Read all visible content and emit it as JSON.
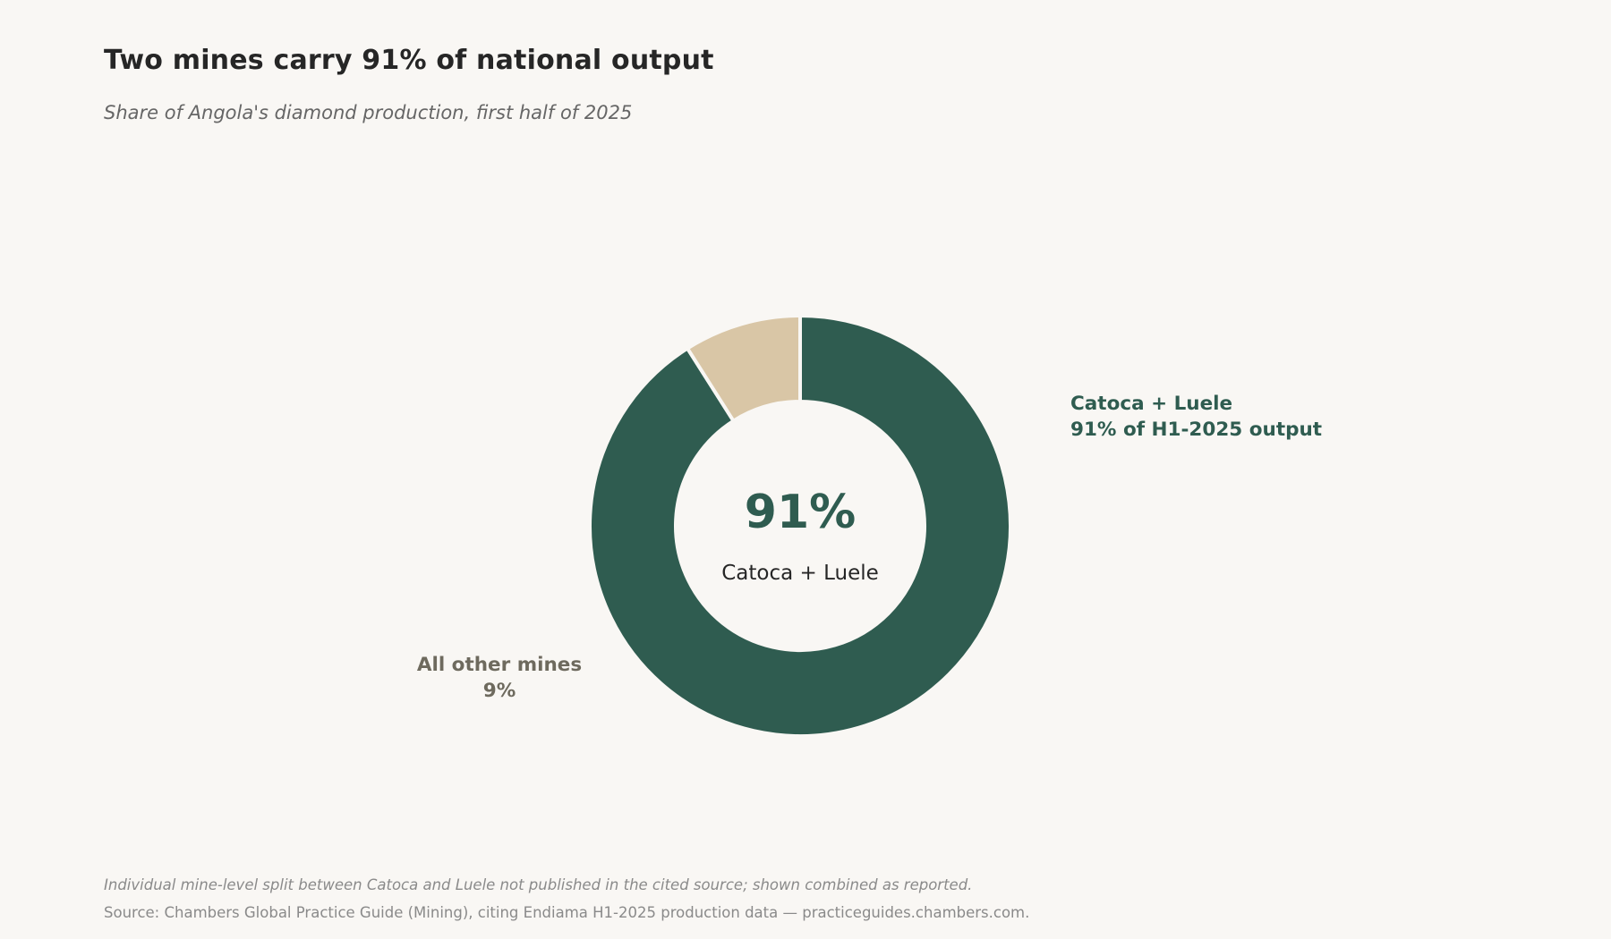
{
  "title": "Two mines carry 91% of national output",
  "subtitle": "Share of Angola's diamond production, first half of 2025",
  "chart_data": {
    "type": "pie",
    "variant": "donut",
    "categories": [
      "Catoca + Luele",
      "All other mines"
    ],
    "values": [
      91,
      9
    ],
    "unit": "%",
    "colors": [
      "#2f5c50",
      "#d9c6a6"
    ],
    "legend": "none",
    "center_label": {
      "value": "91%",
      "text": "Catoca + Luele"
    },
    "annotations": [
      {
        "line1": "Catoca + Luele",
        "line2": "91% of H1-2025 output",
        "color": "#2f5c50"
      },
      {
        "line1": "All other mines",
        "line2": "9%",
        "color": "#6e6a5e"
      }
    ]
  },
  "footnotes": {
    "note": "Individual mine-level split between Catoca and Luele not published in the cited source; shown combined as reported.",
    "source": "Source: Chambers Global Practice Guide (Mining), citing Endiama H1-2025 production data — practiceguides.chambers.com."
  }
}
